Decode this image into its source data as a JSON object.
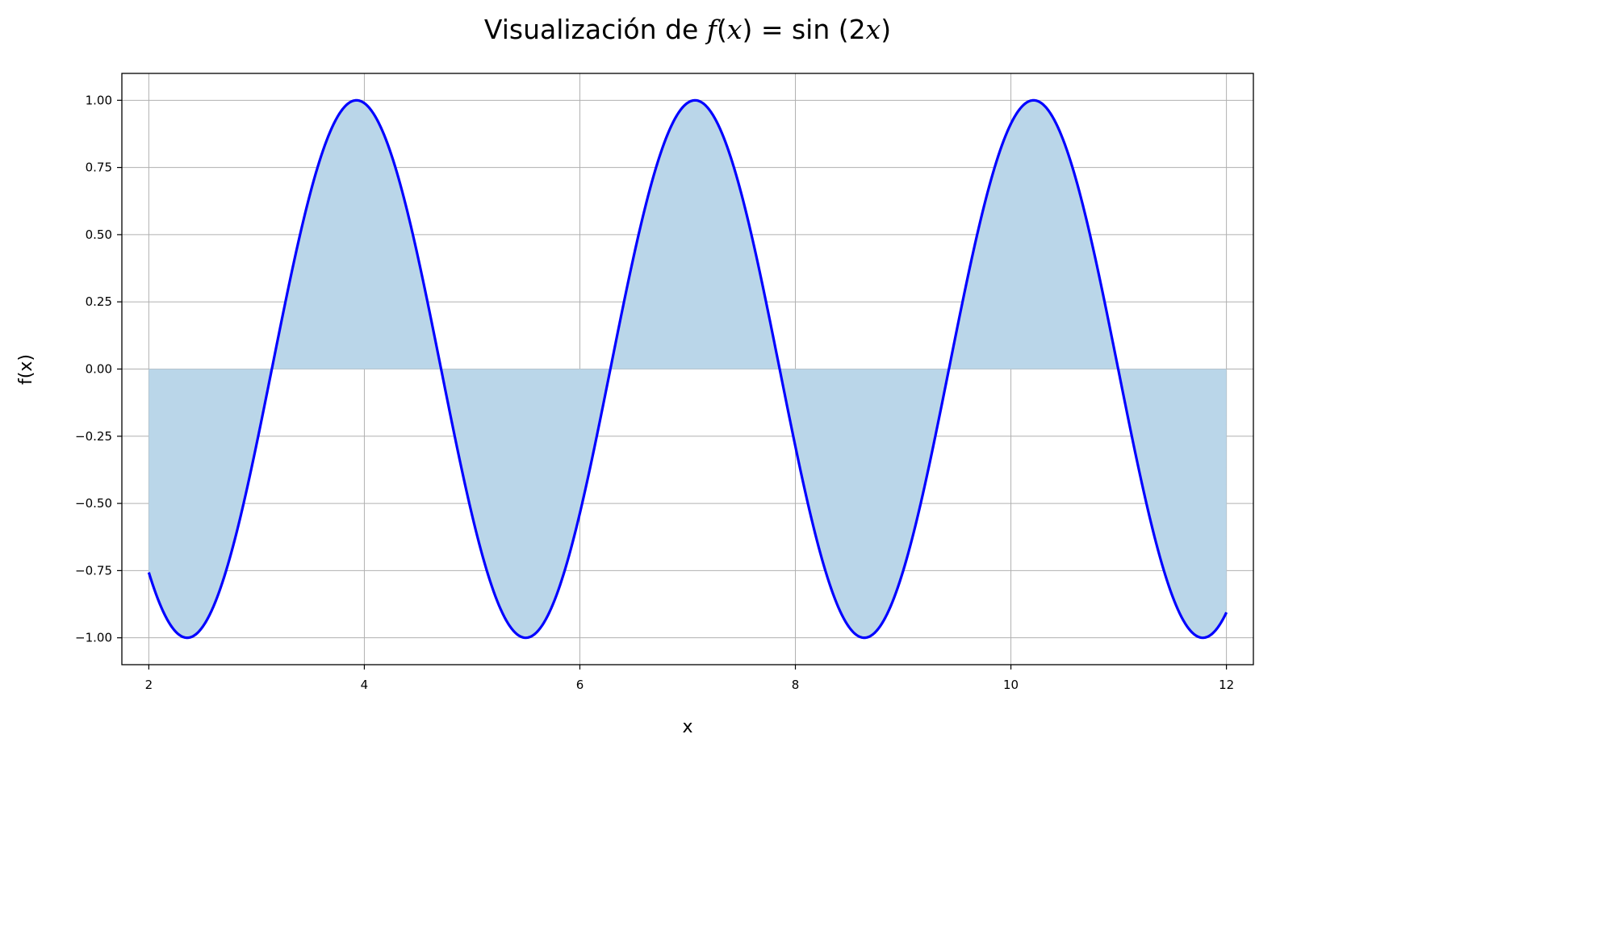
{
  "chart_data": {
    "type": "area",
    "title": {
      "prefix": "Visualización de ",
      "formula_f": "f",
      "formula_open": "(",
      "formula_x": "x",
      "formula_close": ")",
      "formula_eq": " = sin (2",
      "formula_x2": "x",
      "formula_end": ")"
    },
    "xlabel": "x",
    "ylabel": "f(x)",
    "function": "sin(2x)",
    "x_range": [
      2,
      12
    ],
    "xlim": [
      1.75,
      12.25
    ],
    "ylim": [
      -1.1,
      1.1
    ],
    "xticks": [
      2,
      4,
      6,
      8,
      10,
      12
    ],
    "xtick_labels": [
      "2",
      "4",
      "6",
      "8",
      "10",
      "12"
    ],
    "yticks": [
      -1.0,
      -0.75,
      -0.5,
      -0.25,
      0.0,
      0.25,
      0.5,
      0.75,
      1.0
    ],
    "ytick_labels": [
      "−1.00",
      "−0.75",
      "−0.50",
      "−0.25",
      "0.00",
      "0.25",
      "0.50",
      "0.75",
      "1.00"
    ],
    "grid": true,
    "fill_to_zero": true,
    "line_color": "#0000ff",
    "fill_color": "#bad6e9",
    "grid_color": "#b0b0b0"
  }
}
